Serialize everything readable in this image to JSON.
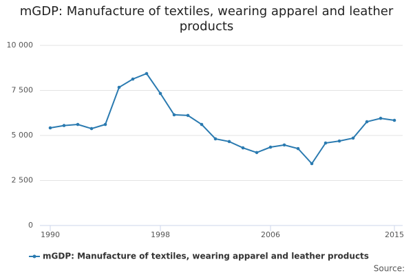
{
  "chart_data": {
    "type": "line",
    "title": "mGDP: Manufacture of textiles, wearing apparel and leather products",
    "source": "Source:",
    "x": [
      1990,
      1991,
      1992,
      1993,
      1994,
      1995,
      1996,
      1997,
      1998,
      1999,
      2000,
      2001,
      2002,
      2003,
      2004,
      2005,
      2006,
      2007,
      2008,
      2009,
      2010,
      2011,
      2012,
      2013,
      2014,
      2015
    ],
    "series": [
      {
        "name": "mGDP: Manufacture of textiles, wearing apparel and leather products",
        "color": "#2a7ab0",
        "values": [
          5420,
          5550,
          5610,
          5380,
          5610,
          7670,
          8130,
          8435,
          7330,
          6145,
          6110,
          5610,
          4810,
          4660,
          4310,
          4050,
          4350,
          4470,
          4270,
          3435,
          4580,
          4690,
          4850,
          5760,
          5950,
          5840
        ]
      }
    ],
    "xlim": [
      1990,
      2015
    ],
    "xticks": [
      1990,
      1998,
      2006,
      2015
    ],
    "ylim": [
      0,
      10000
    ],
    "yticks": [
      0,
      {
        "value": 2500,
        "label": "2 500"
      },
      {
        "value": 5000,
        "label": "5 000"
      },
      {
        "value": 7500,
        "label": "7 500"
      },
      {
        "value": 10000,
        "label": "10 000"
      }
    ],
    "grid": true,
    "legend": "bottom"
  }
}
